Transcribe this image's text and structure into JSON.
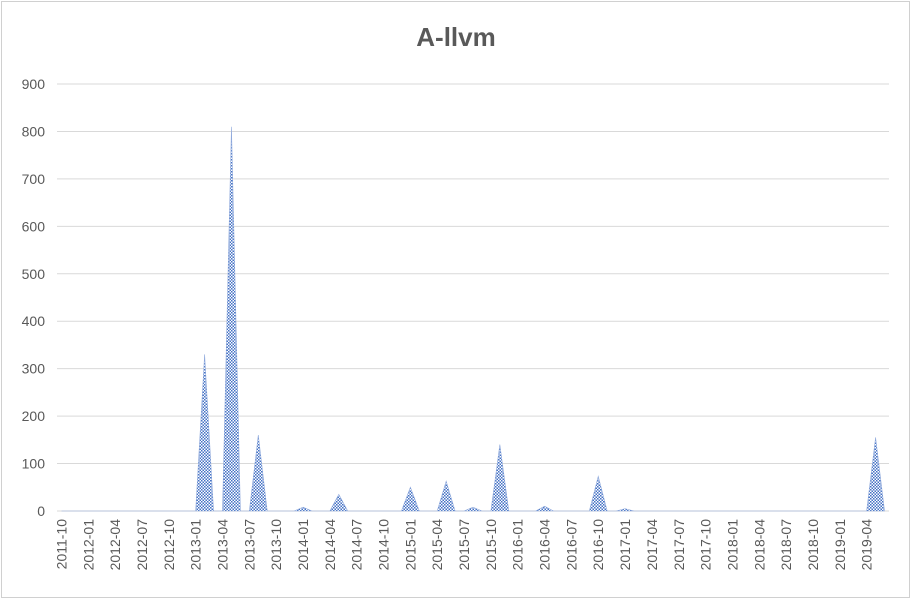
{
  "chart_data": {
    "type": "area",
    "title": "A-llvm",
    "xlabel": "",
    "ylabel": "",
    "ylim": [
      0,
      900
    ],
    "yticks": [
      0,
      100,
      200,
      300,
      400,
      500,
      600,
      700,
      800,
      900
    ],
    "grid": true,
    "legend": "none",
    "colors": {
      "fill": "#4472c4",
      "grid": "#d9d9d9",
      "text": "#595959"
    },
    "x_tick_labels": [
      "2011-10",
      "2012-01",
      "2012-04",
      "2012-07",
      "2012-10",
      "2013-01",
      "2013-04",
      "2013-07",
      "2013-10",
      "2014-01",
      "2014-04",
      "2014-07",
      "2014-10",
      "2015-01",
      "2015-04",
      "2015-07",
      "2015-10",
      "2016-01",
      "2016-04",
      "2016-07",
      "2016-10",
      "2017-01",
      "2017-04",
      "2017-07",
      "2017-10",
      "2018-01",
      "2018-04",
      "2018-07",
      "2018-10",
      "2019-01",
      "2019-04"
    ],
    "x": [
      "2011-10",
      "2011-11",
      "2011-12",
      "2012-01",
      "2012-02",
      "2012-03",
      "2012-04",
      "2012-05",
      "2012-06",
      "2012-07",
      "2012-08",
      "2012-09",
      "2012-10",
      "2012-11",
      "2012-12",
      "2013-01",
      "2013-02",
      "2013-03",
      "2013-04",
      "2013-05",
      "2013-06",
      "2013-07",
      "2013-08",
      "2013-09",
      "2013-10",
      "2013-11",
      "2013-12",
      "2014-01",
      "2014-02",
      "2014-03",
      "2014-04",
      "2014-05",
      "2014-06",
      "2014-07",
      "2014-08",
      "2014-09",
      "2014-10",
      "2014-11",
      "2014-12",
      "2015-01",
      "2015-02",
      "2015-03",
      "2015-04",
      "2015-05",
      "2015-06",
      "2015-07",
      "2015-08",
      "2015-09",
      "2015-10",
      "2015-11",
      "2015-12",
      "2016-01",
      "2016-02",
      "2016-03",
      "2016-04",
      "2016-05",
      "2016-06",
      "2016-07",
      "2016-08",
      "2016-09",
      "2016-10",
      "2016-11",
      "2016-12",
      "2017-01",
      "2017-02",
      "2017-03",
      "2017-04",
      "2017-05",
      "2017-06",
      "2017-07",
      "2017-08",
      "2017-09",
      "2017-10",
      "2017-11",
      "2017-12",
      "2018-01",
      "2018-02",
      "2018-03",
      "2018-04",
      "2018-05",
      "2018-06",
      "2018-07",
      "2018-08",
      "2018-09",
      "2018-10",
      "2018-11",
      "2018-12",
      "2019-01",
      "2019-02",
      "2019-03",
      "2019-04",
      "2019-05",
      "2019-06"
    ],
    "values": [
      0,
      0,
      0,
      0,
      0,
      0,
      0,
      0,
      0,
      0,
      0,
      0,
      0,
      0,
      0,
      0,
      330,
      0,
      0,
      810,
      0,
      0,
      160,
      0,
      0,
      0,
      0,
      8,
      0,
      0,
      0,
      35,
      0,
      0,
      0,
      0,
      0,
      0,
      0,
      50,
      0,
      0,
      0,
      63,
      0,
      0,
      8,
      0,
      0,
      140,
      0,
      0,
      0,
      0,
      10,
      0,
      0,
      0,
      0,
      0,
      73,
      0,
      0,
      5,
      0,
      0,
      0,
      0,
      0,
      0,
      0,
      0,
      0,
      0,
      0,
      0,
      0,
      0,
      0,
      0,
      0,
      0,
      0,
      0,
      0,
      0,
      0,
      0,
      0,
      0,
      0,
      155,
      0
    ]
  }
}
